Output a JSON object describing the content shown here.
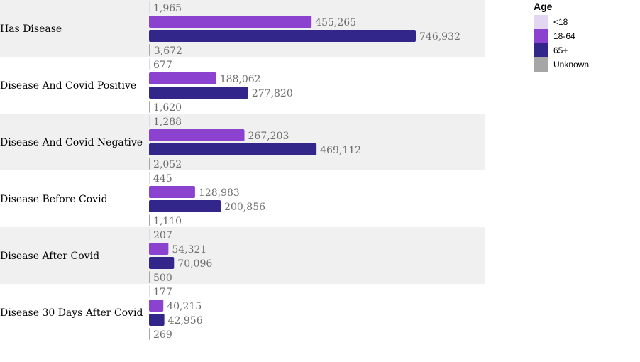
{
  "chart_data": {
    "type": "bar",
    "orientation": "horizontal",
    "categories": [
      "Has Disease",
      "Disease And Covid Positive",
      "Disease And Covid Negative",
      "Disease Before Covid",
      "Disease After Covid",
      "Disease 30 Days After Covid"
    ],
    "series": [
      {
        "name": "<18",
        "color": "#e2d6f2",
        "values": [
          1965,
          677,
          1288,
          445,
          207,
          177
        ],
        "labels": [
          "1,965",
          "677",
          "1,288",
          "445",
          "207",
          "177"
        ]
      },
      {
        "name": "18-64",
        "color": "#8a42cf",
        "values": [
          455265,
          188062,
          267203,
          128983,
          54321,
          40215
        ],
        "labels": [
          "455,265",
          "188,062",
          "267,203",
          "128,983",
          "54,321",
          "40,215"
        ]
      },
      {
        "name": "65+",
        "color": "#32268a",
        "values": [
          746932,
          277820,
          469112,
          200856,
          70096,
          42956
        ],
        "labels": [
          "746,932",
          "277,820",
          "469,112",
          "200,856",
          "70,096",
          "42,956"
        ]
      },
      {
        "name": "Unknown",
        "color": "#a6a6a6",
        "values": [
          3672,
          1620,
          2052,
          1110,
          500,
          269
        ],
        "labels": [
          "3,672",
          "1,620",
          "2,052",
          "1,110",
          "500",
          "269"
        ]
      }
    ],
    "legend": {
      "title": "Age",
      "position": "top-right"
    },
    "row_band_color": "#f0f0f0",
    "xlim": [
      0,
      746932
    ],
    "title": "",
    "xlabel": "",
    "ylabel": ""
  }
}
